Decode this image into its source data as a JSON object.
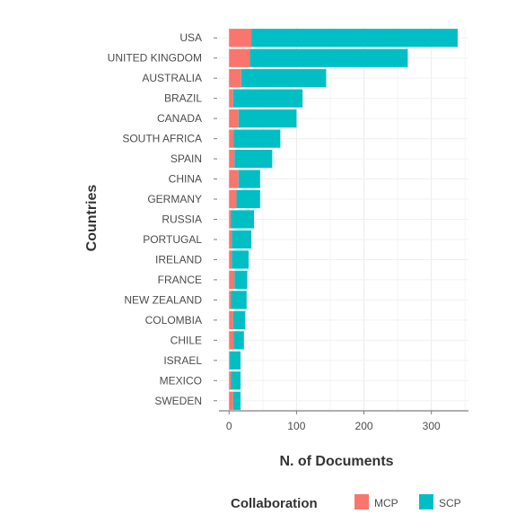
{
  "chart_data": {
    "type": "bar",
    "orientation": "horizontal",
    "stacked": true,
    "categories": [
      "USA",
      "UNITED KINGDOM",
      "AUSTRALIA",
      "BRAZIL",
      "CANADA",
      "SOUTH AFRICA",
      "SPAIN",
      "CHINA",
      "GERMANY",
      "RUSSIA",
      "PORTUGAL",
      "IRELAND",
      "FRANCE",
      "NEW ZEALAND",
      "COLOMBIA",
      "CHILE",
      "ISRAEL",
      "MEXICO",
      "SWEDEN"
    ],
    "series": [
      {
        "name": "MCP",
        "color": "#F8766D",
        "values": [
          33,
          31,
          18,
          6,
          14,
          7,
          8,
          14,
          11,
          3,
          4,
          4,
          8,
          3,
          6,
          7,
          1,
          3,
          6
        ]
      },
      {
        "name": "SCP",
        "color": "#00BFC4",
        "values": [
          306,
          234,
          126,
          103,
          86,
          69,
          56,
          32,
          35,
          34,
          29,
          25,
          19,
          23,
          18,
          15,
          16,
          14,
          11
        ]
      }
    ],
    "xlabel": "N. of Documents",
    "ylabel": "Countries",
    "xlim": [
      -15,
      355
    ],
    "xticks": [
      0,
      100,
      200,
      300
    ],
    "grid": true,
    "legend_title": "Collaboration",
    "legend_position": "bottom"
  }
}
